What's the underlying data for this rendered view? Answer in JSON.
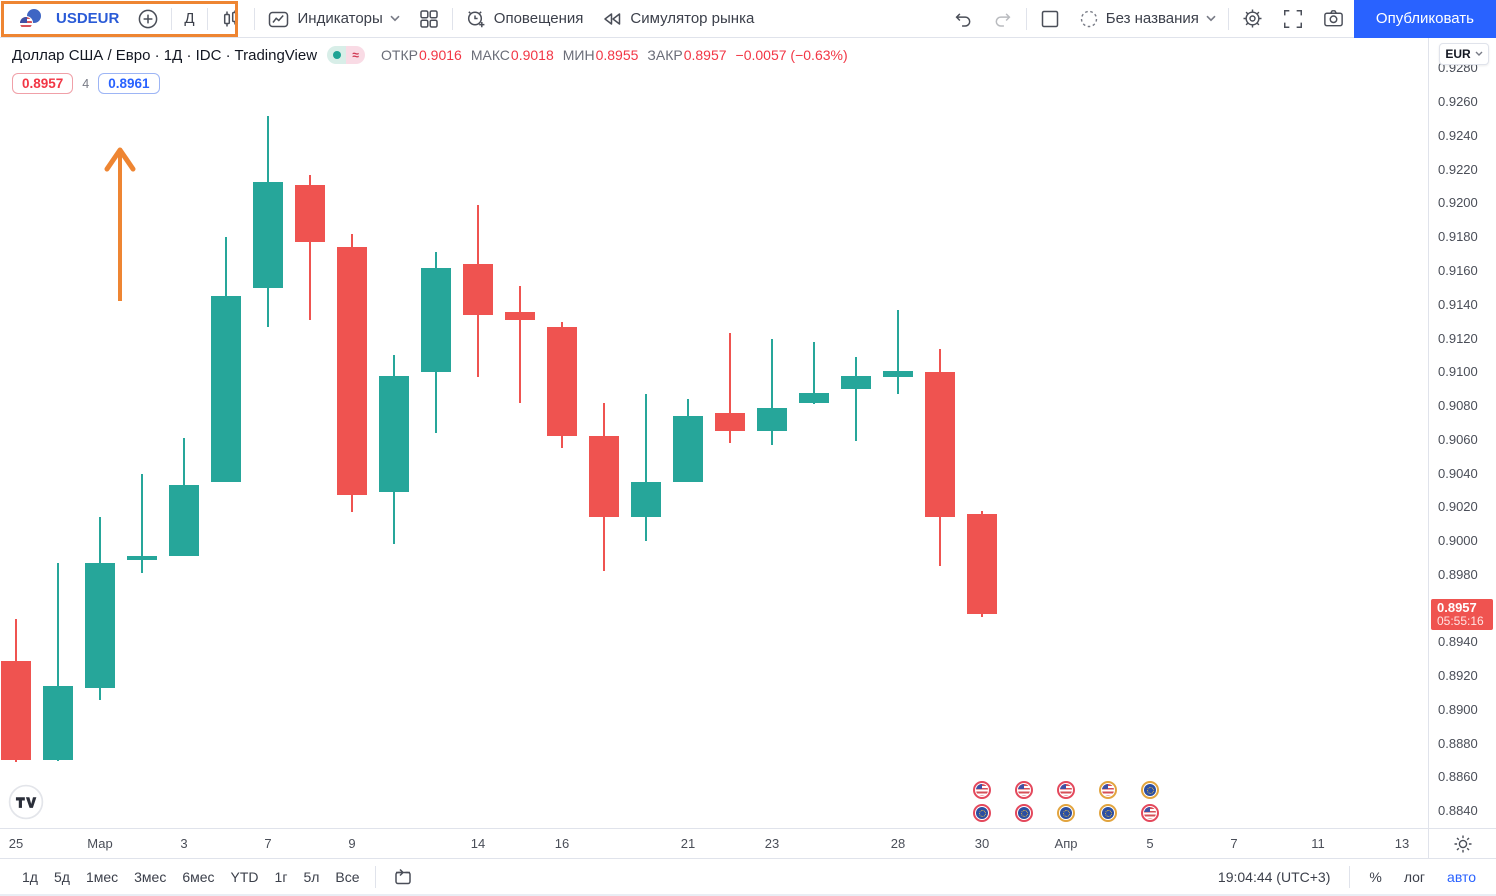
{
  "topbar": {
    "symbol": "USDEUR",
    "interval_label": "Д",
    "indicators_label": "Индикаторы",
    "alerts_label": "Оповещения",
    "replay_label": "Симулятор рынка",
    "layout_name": "Без названия",
    "publish_label": "Опубликовать"
  },
  "legend": {
    "title": "Доллар США / Евро · 1Д · IDC · TradingView",
    "status_approx": "≈",
    "ohlc": [
      {
        "label": "ОТКР",
        "value": "0.9016"
      },
      {
        "label": "МАКС",
        "value": "0.9018"
      },
      {
        "label": "МИН",
        "value": "0.8955"
      },
      {
        "label": "ЗАКР",
        "value": "0.8957"
      }
    ],
    "change": "−0.0057 (−0.63%)",
    "bid": "0.8957",
    "spread": "4",
    "ask": "0.8961"
  },
  "chart_data": {
    "type": "candlestick",
    "title": "USDEUR, 1Д, IDC",
    "x_dates": [
      "25 фев",
      "28 фев",
      "1 мар",
      "2 мар",
      "3 мар",
      "4 мар",
      "7 мар",
      "8 мар",
      "9 мар",
      "10 мар",
      "11 мар",
      "14 мар",
      "15 мар",
      "16 мар",
      "17 мар",
      "18 мар",
      "21 мар",
      "22 мар",
      "23 мар",
      "24 мар",
      "25 мар",
      "28 мар",
      "29 мар",
      "30 мар"
    ],
    "open": [
      0.8929,
      0.887,
      0.8913,
      0.8989,
      0.8991,
      0.9035,
      0.915,
      0.9211,
      0.9174,
      0.9029,
      0.91,
      0.9164,
      0.9136,
      0.9127,
      0.9062,
      0.9014,
      0.9035,
      0.9076,
      0.9065,
      0.9082,
      0.909,
      0.9097,
      0.91,
      0.9016
    ],
    "high": [
      0.8954,
      0.8987,
      0.9014,
      0.904,
      0.9061,
      0.918,
      0.9252,
      0.9217,
      0.9182,
      0.911,
      0.9171,
      0.9199,
      0.9151,
      0.913,
      0.9082,
      0.9087,
      0.9084,
      0.9123,
      0.912,
      0.9118,
      0.9109,
      0.9137,
      0.9114,
      0.9018
    ],
    "low": [
      0.8869,
      0.887,
      0.8906,
      0.8981,
      0.8991,
      0.9035,
      0.9127,
      0.9131,
      0.9017,
      0.8998,
      0.9064,
      0.9097,
      0.9082,
      0.9055,
      0.8982,
      0.9,
      0.9035,
      0.9058,
      0.9057,
      0.9081,
      0.9059,
      0.9087,
      0.8985,
      0.8955
    ],
    "close": [
      0.887,
      0.8914,
      0.8987,
      0.8991,
      0.9033,
      0.9145,
      0.9213,
      0.9177,
      0.9027,
      0.9098,
      0.9162,
      0.9134,
      0.9131,
      0.9062,
      0.9014,
      0.9035,
      0.9074,
      0.9065,
      0.9079,
      0.9088,
      0.9098,
      0.9101,
      0.9014,
      0.8957
    ],
    "ylim": [
      0.883,
      0.9298
    ],
    "grid": false,
    "price_ticks": [
      "0.9280",
      "0.9260",
      "0.9240",
      "0.9220",
      "0.9200",
      "0.9180",
      "0.9160",
      "0.9140",
      "0.9120",
      "0.9100",
      "0.9080",
      "0.9060",
      "0.9040",
      "0.9020",
      "0.9000",
      "0.8980",
      "0.8960",
      "0.8940",
      "0.8920",
      "0.8900",
      "0.8880",
      "0.8860",
      "0.8840"
    ],
    "time_ticks": [
      {
        "i": 0,
        "label": "25"
      },
      {
        "i": 2,
        "label": "Мар"
      },
      {
        "i": 4,
        "label": "3"
      },
      {
        "i": 6,
        "label": "7"
      },
      {
        "i": 8,
        "label": "9"
      },
      {
        "i": 11,
        "label": "14"
      },
      {
        "i": 13,
        "label": "16"
      },
      {
        "i": 16,
        "label": "21"
      },
      {
        "i": 18,
        "label": "23"
      },
      {
        "i": 21,
        "label": "28"
      },
      {
        "i": 23,
        "label": "30"
      },
      {
        "i": 25,
        "label": "Апр"
      },
      {
        "i": 27,
        "label": "5"
      },
      {
        "i": 29,
        "label": "7"
      },
      {
        "i": 31,
        "label": "11"
      },
      {
        "i": 33,
        "label": "13"
      }
    ],
    "last_price": {
      "value": "0.8957",
      "countdown": "05:55:16"
    },
    "events": [
      {
        "i": 23,
        "flags": [
          "us-high",
          "eu-high"
        ]
      },
      {
        "i": 24,
        "flags": [
          "us-high",
          "eu-high"
        ]
      },
      {
        "i": 25,
        "flags": [
          "us-high",
          "eu-med"
        ]
      },
      {
        "i": 26,
        "flags": [
          "us-med",
          "eu-med"
        ]
      },
      {
        "i": 27,
        "flags": [
          "eu-med",
          "us-high"
        ]
      }
    ]
  },
  "price_axis": {
    "currency_label": "EUR"
  },
  "bottom_bar": {
    "ranges": [
      "1д",
      "5д",
      "1мес",
      "3мес",
      "6мес",
      "YTD",
      "1г",
      "5л",
      "Все"
    ],
    "time": "19:04:44 (UTC+3)",
    "percent_label": "%",
    "log_label": "лог",
    "auto_label": "авто"
  },
  "watermark": "TV",
  "colors": {
    "up": "#26a69a",
    "down": "#ef5350",
    "accent_blue": "#2962ff",
    "value_red": "#f23645",
    "annotation_orange": "#ee8532",
    "event_high": "#e4485c",
    "event_medium": "#e2a43e"
  },
  "icons": [
    "usd-eur-pair-icon",
    "plus-circle-icon",
    "candlestick-style-icon",
    "indicators-icon",
    "grid-layout-icon",
    "alarm-plus-icon",
    "replay-rewind-icon",
    "undo-icon",
    "redo-icon",
    "layout-square-icon",
    "cloud-save-icon",
    "chevron-down-icon",
    "gear-icon",
    "fullscreen-icon",
    "camera-icon",
    "calendar-goto-icon",
    "sun-icon",
    "tv-logo",
    "us-flag-icon",
    "eu-flag-icon",
    "up-arrow-annotation"
  ]
}
